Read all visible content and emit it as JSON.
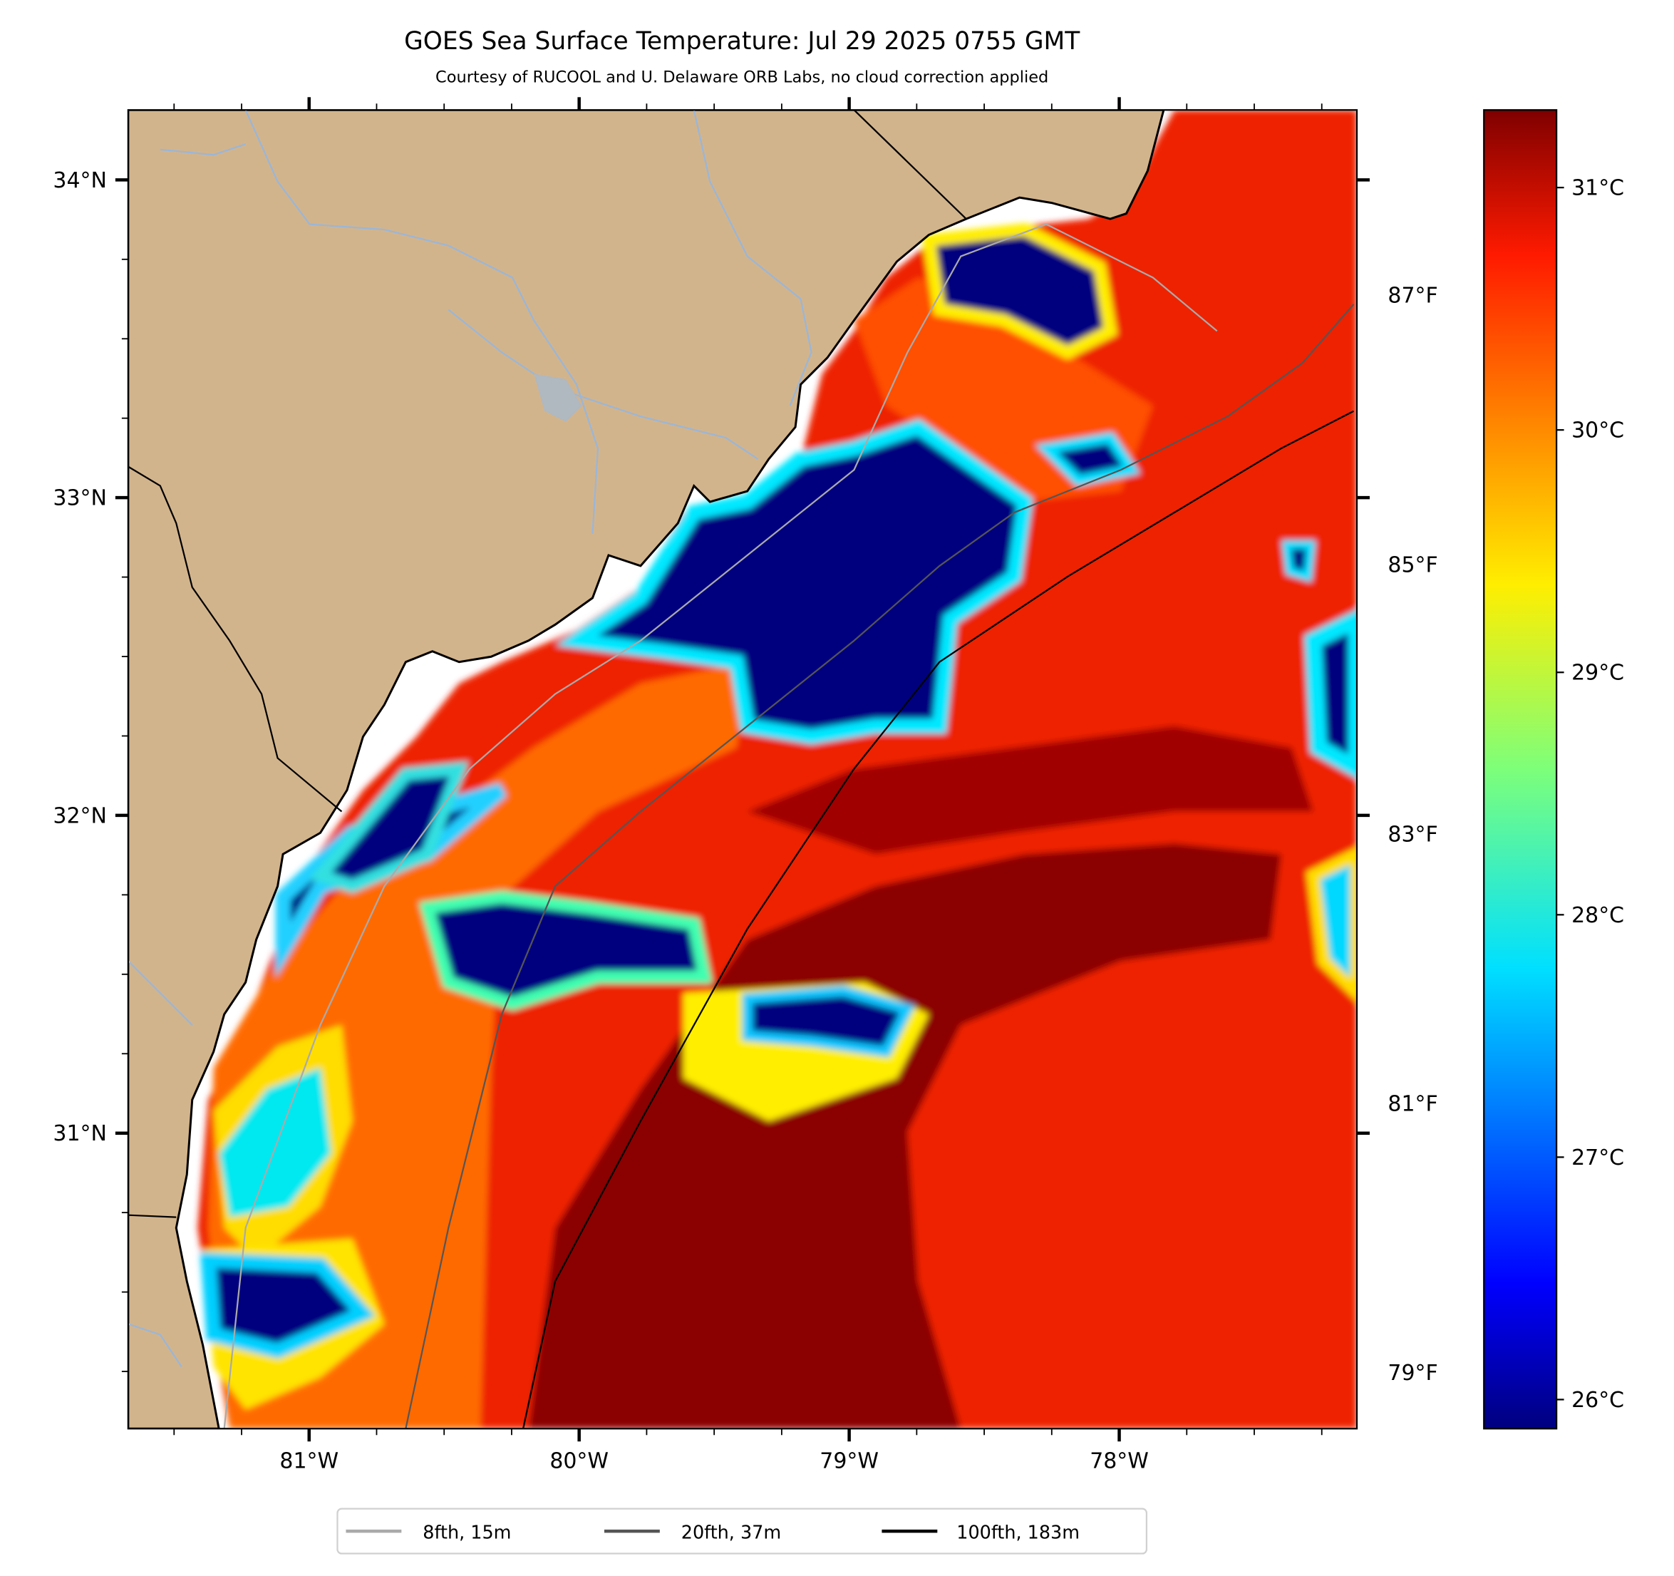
{
  "title": "GOES Sea Surface Temperature: Jul 29 2025 0755 GMT",
  "subtitle": "Courtesy of RUCOOL and U. Delaware ORB Labs, no cloud correction applied",
  "map": {
    "lon_range": [
      -81.67,
      -77.12
    ],
    "lat_range": [
      30.07,
      34.22
    ],
    "lat_ticks": [
      {
        "value": 34,
        "label": "34°N"
      },
      {
        "value": 33,
        "label": "33°N"
      },
      {
        "value": 32,
        "label": "32°N"
      },
      {
        "value": 31,
        "label": "31°N"
      }
    ],
    "lon_ticks": [
      {
        "value": -81,
        "label": "81°W"
      },
      {
        "value": -80,
        "label": "80°W"
      },
      {
        "value": -79,
        "label": "79°W"
      },
      {
        "value": -78,
        "label": "78°W"
      }
    ],
    "land_color": "#d2b48c",
    "river_color": "#9ab6d8"
  },
  "colorbar": {
    "range_c": [
      25.88,
      31.32
    ],
    "celsius_ticks": [
      {
        "value": 31,
        "label": "31°C"
      },
      {
        "value": 30,
        "label": "30°C"
      },
      {
        "value": 29,
        "label": "29°C"
      },
      {
        "value": 28,
        "label": "28°C"
      },
      {
        "value": 27,
        "label": "27°C"
      },
      {
        "value": 26,
        "label": "26°C"
      }
    ],
    "fahrenheit_ticks": [
      {
        "value": 87,
        "label": "87°F"
      },
      {
        "value": 85,
        "label": "85°F"
      },
      {
        "value": 83,
        "label": "83°F"
      },
      {
        "value": 81,
        "label": "81°F"
      },
      {
        "value": 79,
        "label": "79°F"
      }
    ]
  },
  "legend": [
    {
      "label": "8fth, 15m",
      "color": "#aaaaaa"
    },
    {
      "label": "20fth, 37m",
      "color": "#555555"
    },
    {
      "label": "100fth, 183m",
      "color": "#000000"
    }
  ]
}
